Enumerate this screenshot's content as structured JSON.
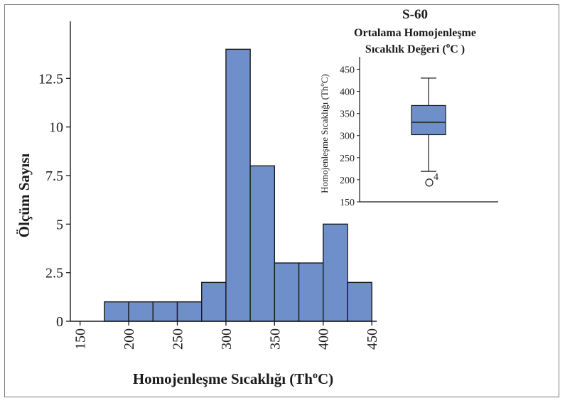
{
  "colors": {
    "bar_fill": "#6f8fcb",
    "bar_stroke": "#1a1a1a",
    "axis": "#1a1a1a",
    "frame": "#7a7a7a"
  },
  "chart_data": [
    {
      "type": "bar",
      "subtype": "histogram",
      "title": "",
      "xlabel": "Homojenleşme Sıcaklığı (Th",
      "xlabel_sup": "o",
      "xlabel_end": "C)",
      "ylabel": "Ölçüm Sayısı",
      "xlim": [
        140,
        455
      ],
      "ylim": [
        0,
        15
      ],
      "x_ticks": [
        150,
        200,
        250,
        300,
        350,
        400,
        450
      ],
      "y_ticks": [
        0,
        2.5,
        5,
        7.5,
        10,
        12.5
      ],
      "y_tick_labels": [
        "0",
        "2.5",
        "5",
        "7.5",
        "10",
        "12.5"
      ],
      "bin_width": 25,
      "bins": [
        {
          "x0": 175,
          "x1": 200,
          "count": 1
        },
        {
          "x0": 200,
          "x1": 225,
          "count": 1
        },
        {
          "x0": 225,
          "x1": 250,
          "count": 1
        },
        {
          "x0": 250,
          "x1": 275,
          "count": 1
        },
        {
          "x0": 275,
          "x1": 300,
          "count": 2
        },
        {
          "x0": 300,
          "x1": 325,
          "count": 14
        },
        {
          "x0": 325,
          "x1": 350,
          "count": 8
        },
        {
          "x0": 350,
          "x1": 375,
          "count": 3
        },
        {
          "x0": 375,
          "x1": 400,
          "count": 3
        },
        {
          "x0": 400,
          "x1": 425,
          "count": 5
        },
        {
          "x0": 425,
          "x1": 450,
          "count": 2
        }
      ],
      "grid": false
    },
    {
      "type": "box",
      "title_line1": "S-60",
      "title_line2": "Ortalama Homojenleşme",
      "title_line3_start": "Sıcaklık Değeri (",
      "title_line3_sup": "o",
      "title_line3_end": "C )",
      "ylabel": "Homojenleşme Sıcaklığı (Th",
      "ylabel_sup": "o",
      "ylabel_end": "C)",
      "ylim": [
        150,
        470
      ],
      "y_ticks": [
        150,
        200,
        250,
        300,
        350,
        400,
        450
      ],
      "whisker_low": 219,
      "q1": 302,
      "median": 330,
      "q3": 368,
      "whisker_high": 430,
      "outlier_value": 200,
      "outlier_label": "4"
    }
  ]
}
